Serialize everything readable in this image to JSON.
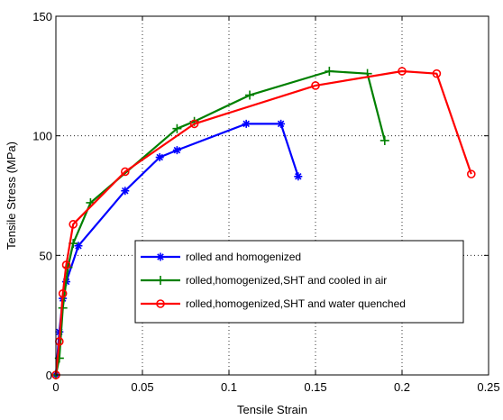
{
  "chart_data": {
    "type": "line",
    "xlabel": "Tensile Strain",
    "ylabel": "Tensile Stress (MPa)",
    "xlim": [
      0,
      0.25
    ],
    "ylim": [
      0,
      150
    ],
    "x_ticks": [
      0,
      0.05,
      0.1,
      0.15,
      0.2,
      0.25
    ],
    "x_tick_labels": [
      "0",
      "0.05",
      "0.1",
      "0.15",
      "0.2",
      "0.25"
    ],
    "y_ticks": [
      0,
      50,
      100,
      150
    ],
    "y_tick_labels": [
      "0",
      "50",
      "100",
      "150"
    ],
    "grid": "dotted",
    "legend_position": "lower-right-center",
    "series": [
      {
        "name": "rolled and homogenized",
        "color": "#0000ff",
        "marker": "star",
        "points": [
          [
            0,
            0
          ],
          [
            0.002,
            18
          ],
          [
            0.004,
            32
          ],
          [
            0.006,
            39
          ],
          [
            0.013,
            54
          ],
          [
            0.04,
            77
          ],
          [
            0.06,
            91
          ],
          [
            0.07,
            94
          ],
          [
            0.11,
            105
          ],
          [
            0.13,
            105
          ],
          [
            0.14,
            83
          ]
        ]
      },
      {
        "name": "rolled,homogenized,SHT and cooled in air",
        "color": "#008000",
        "marker": "plus",
        "points": [
          [
            0,
            0
          ],
          [
            0.002,
            7
          ],
          [
            0.004,
            28
          ],
          [
            0.007,
            45
          ],
          [
            0.01,
            55
          ],
          [
            0.02,
            72
          ],
          [
            0.07,
            103
          ],
          [
            0.08,
            106
          ],
          [
            0.112,
            117
          ],
          [
            0.158,
            127
          ],
          [
            0.18,
            126
          ],
          [
            0.19,
            98
          ]
        ]
      },
      {
        "name": "rolled,homogenized,SHT and water quenched",
        "color": "#ff0000",
        "marker": "circle",
        "points": [
          [
            0,
            0
          ],
          [
            0.002,
            14
          ],
          [
            0.004,
            34
          ],
          [
            0.006,
            46
          ],
          [
            0.01,
            63
          ],
          [
            0.04,
            85
          ],
          [
            0.08,
            105
          ],
          [
            0.15,
            121
          ],
          [
            0.2,
            127
          ],
          [
            0.22,
            126
          ],
          [
            0.24,
            84
          ]
        ]
      }
    ]
  }
}
